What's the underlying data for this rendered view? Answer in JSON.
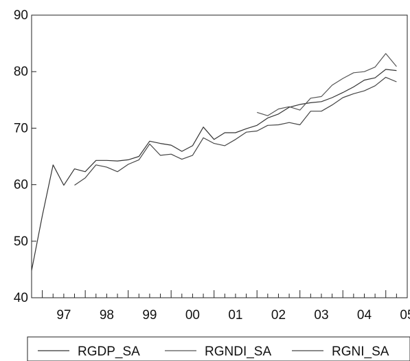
{
  "chart_data": {
    "type": "line",
    "title": "",
    "xlabel": "",
    "ylabel": "",
    "ylim": [
      40,
      90
    ],
    "yticks": [
      40,
      50,
      60,
      70,
      80,
      90
    ],
    "xlim": [
      1996.75,
      2005.5
    ],
    "xtick_labels": [
      {
        "label": "97",
        "year": 1997
      },
      {
        "label": "98",
        "year": 1998
      },
      {
        "label": "99",
        "year": 1999
      },
      {
        "label": "00",
        "year": 2000
      },
      {
        "label": "01",
        "year": 2001
      },
      {
        "label": "02",
        "year": 2002
      },
      {
        "label": "03",
        "year": 2003
      },
      {
        "label": "04",
        "year": 2004
      },
      {
        "label": "05",
        "year": 2005
      }
    ],
    "grid": false,
    "legend_position": "bottom",
    "series": [
      {
        "name": "RGDP_SA",
        "color": "#333333",
        "x": [
          1996.75,
          1997.0,
          1997.25,
          1997.5,
          1997.75,
          1998.0,
          1998.25,
          1998.5,
          1998.75,
          1999.0,
          1999.25,
          1999.5,
          1999.75,
          2000.0,
          2000.25,
          2000.5,
          2000.75,
          2001.0,
          2001.25,
          2001.5,
          2001.75,
          2002.0,
          2002.25,
          2002.5,
          2002.75,
          2003.0,
          2003.25,
          2003.5,
          2003.75,
          2004.0,
          2004.25,
          2004.5,
          2004.75,
          2005.0,
          2005.25
        ],
        "values": [
          44.8,
          54.5,
          63.5,
          59.9,
          62.8,
          62.3,
          64.3,
          64.3,
          64.2,
          64.4,
          65.0,
          67.7,
          67.3,
          67.0,
          65.9,
          66.9,
          70.2,
          68.0,
          69.2,
          69.2,
          69.9,
          70.5,
          71.8,
          72.5,
          73.7,
          74.2,
          74.5,
          74.7,
          75.4,
          76.3,
          77.3,
          78.5,
          78.9,
          80.4,
          80.2
        ]
      },
      {
        "name": "RGNDI_SA",
        "color": "#555555",
        "x": [
          2002.0,
          2002.25,
          2002.5,
          2002.75,
          2003.0,
          2003.25,
          2003.5,
          2003.75,
          2004.0,
          2004.25,
          2004.5,
          2004.75,
          2005.0,
          2005.25
        ],
        "values": [
          72.8,
          72.2,
          73.4,
          73.8,
          73.2,
          75.3,
          75.6,
          77.6,
          78.8,
          79.8,
          80.0,
          80.8,
          83.2,
          80.9
        ]
      },
      {
        "name": "RGNI_SA",
        "color": "#444444",
        "x": [
          1997.75,
          1998.0,
          1998.25,
          1998.5,
          1998.75,
          1999.0,
          1999.25,
          1999.5,
          1999.75,
          2000.0,
          2000.25,
          2000.5,
          2000.75,
          2001.0,
          2001.25,
          2001.5,
          2001.75,
          2002.0,
          2002.25,
          2002.5,
          2002.75,
          2003.0,
          2003.25,
          2003.5,
          2003.75,
          2004.0,
          2004.25,
          2004.5,
          2004.75,
          2005.0,
          2005.25
        ],
        "values": [
          59.9,
          61.2,
          63.5,
          63.1,
          62.3,
          63.6,
          64.4,
          67.2,
          65.2,
          65.4,
          64.5,
          65.2,
          68.3,
          67.3,
          66.9,
          68.0,
          69.3,
          69.5,
          70.5,
          70.6,
          71.0,
          70.6,
          73.0,
          73.0,
          74.1,
          75.4,
          76.1,
          76.6,
          77.5,
          79.0,
          78.2
        ]
      }
    ]
  }
}
